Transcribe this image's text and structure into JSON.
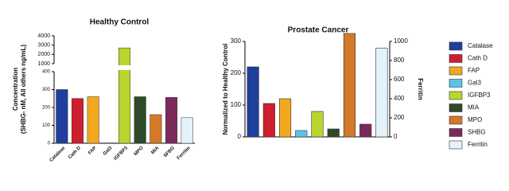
{
  "chart_data": [
    {
      "type": "bar",
      "title": "Healthy Control",
      "y_label": [
        "Concentration",
        "(SHBG- nM, All others ng/mL)"
      ],
      "categories": [
        "Catalase",
        "Cath D",
        "FAP",
        "Gal3",
        "IGFBP3",
        "MPO",
        "MIA",
        "SFBG",
        "Ferritin"
      ],
      "values": [
        300,
        250,
        260,
        2,
        2700,
        260,
        160,
        256,
        143
      ],
      "colors": [
        "#1f3f9e",
        "#cf1e2e",
        "#f2a81d",
        "#5cc3e8",
        "#b8d630",
        "#2e4a2a",
        "#d4782a",
        "#7b2a5c",
        "#e3f2fb"
      ],
      "ylim": [
        0,
        400
      ],
      "yticks": [
        0,
        100,
        200,
        300,
        400
      ],
      "y_break": {
        "ylim": [
          1000,
          4000
        ],
        "yticks": [
          1000,
          2000,
          3000,
          4000
        ]
      }
    },
    {
      "type": "bar",
      "title": "Prostate Cancer",
      "y_label": "Normalized to Healthy Control",
      "y2_label": "Ferritin",
      "categories": [
        "Catalase",
        "Cath D",
        "FAP",
        "Gal3",
        "IGFBP3",
        "MIA",
        "MPO",
        "SHBG",
        "Ferritin"
      ],
      "values": [
        220,
        105,
        120,
        20,
        80,
        25,
        325,
        40,
        930
      ],
      "axis": [
        "y",
        "y",
        "y",
        "y",
        "y",
        "y",
        "y",
        "y",
        "y2"
      ],
      "colors": [
        "#1f3f9e",
        "#cf1e2e",
        "#f2a81d",
        "#5cc3e8",
        "#b8d630",
        "#2e4a2a",
        "#d4782a",
        "#7b2a5c",
        "#e3f2fb"
      ],
      "ylim": [
        0,
        300
      ],
      "yticks": [
        0,
        100,
        200,
        300
      ],
      "y2lim": [
        0,
        1000
      ],
      "y2ticks": [
        0,
        200,
        400,
        600,
        800,
        1000
      ],
      "legend": "right"
    }
  ]
}
